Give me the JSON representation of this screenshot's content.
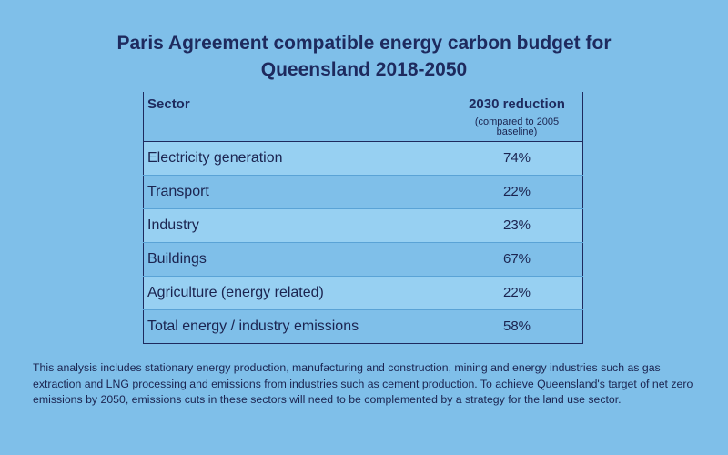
{
  "title": {
    "line1": "Paris Agreement compatible energy carbon budget for",
    "line2": "Queensland 2018-2050"
  },
  "table": {
    "header": {
      "sector": "Sector",
      "reduction": "2030 reduction",
      "reduction_note": "(compared to 2005 baseline)"
    },
    "rows": [
      {
        "sector": "Electricity generation",
        "value": "74%"
      },
      {
        "sector": "Transport",
        "value": "22%"
      },
      {
        "sector": "Industry",
        "value": "23%"
      },
      {
        "sector": "Buildings",
        "value": "67%"
      },
      {
        "sector": "Agriculture (energy related)",
        "value": "22%"
      },
      {
        "sector": "Total energy / industry emissions",
        "value": "58%"
      }
    ]
  },
  "note": "This analysis includes stationary energy production, manufacturing and construction, mining and energy industries such as gas extraction and LNG processing and emissions from industries such as cement production. To achieve Queensland's target of net zero emissions by 2050, emissions cuts in these sectors will need to be complemented by a strategy for the land use sector.",
  "colors": {
    "background": "#7fbfe9",
    "row_highlight": "#97d0f2",
    "text": "#1e2a5e"
  }
}
